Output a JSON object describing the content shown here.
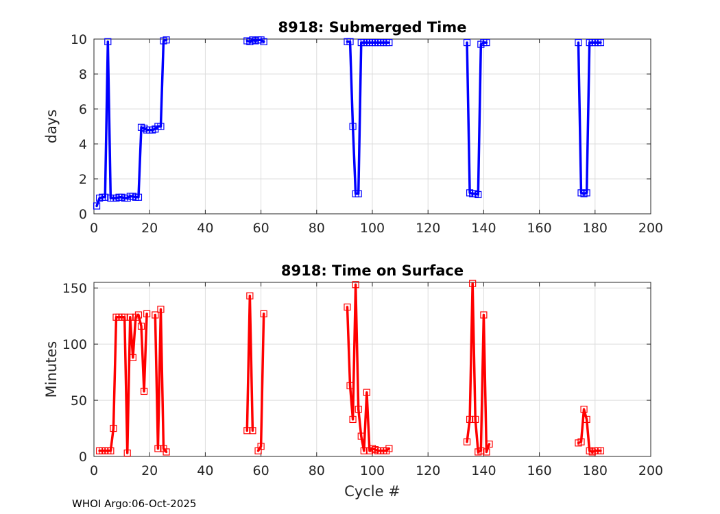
{
  "footer": "WHOI Argo:06-Oct-2025",
  "colors": {
    "top_series": "#0000ff",
    "bottom_series": "#ff0000"
  },
  "chart_data": [
    {
      "type": "line",
      "title": "8918: Submerged Time",
      "xlabel": "",
      "ylabel": "days",
      "xlim": [
        0,
        200
      ],
      "ylim": [
        0,
        10
      ],
      "xticks": [
        0,
        20,
        40,
        60,
        80,
        100,
        120,
        140,
        160,
        180,
        200
      ],
      "yticks": [
        0,
        2,
        4,
        6,
        8,
        10
      ],
      "grid": true,
      "marker": "square",
      "series": [
        {
          "name": "Submerged Time",
          "segments": [
            {
              "x": [
                1,
                2,
                3,
                4,
                5,
                6,
                7,
                8,
                9,
                10,
                11,
                12,
                13,
                14,
                15,
                16,
                17,
                18,
                19,
                20,
                21,
                22,
                23,
                24,
                25,
                26
              ],
              "y": [
                0.45,
                0.9,
                0.95,
                0.95,
                9.85,
                0.9,
                0.9,
                0.9,
                0.95,
                0.95,
                0.9,
                0.9,
                1.0,
                1.0,
                0.95,
                0.95,
                4.95,
                4.9,
                4.8,
                4.8,
                4.8,
                4.85,
                5.0,
                5.0,
                9.9,
                9.95
              ]
            },
            {
              "x": [
                55,
                56,
                57,
                58,
                59,
                60,
                61
              ],
              "y": [
                9.9,
                9.85,
                9.95,
                9.9,
                9.95,
                9.95,
                9.85
              ]
            },
            {
              "x": [
                91,
                92,
                93,
                94,
                95,
                96,
                97,
                98,
                99,
                100,
                101,
                102,
                103,
                104,
                105,
                106
              ],
              "y": [
                9.85,
                9.85,
                5.0,
                1.15,
                1.15,
                9.8,
                9.8,
                9.8,
                9.8,
                9.8,
                9.8,
                9.8,
                9.8,
                9.8,
                9.8,
                9.8
              ]
            },
            {
              "x": [
                134,
                135,
                136,
                137,
                138,
                139,
                140,
                141
              ],
              "y": [
                9.8,
                1.2,
                1.15,
                1.15,
                1.1,
                9.7,
                9.8,
                9.8
              ]
            },
            {
              "x": [
                174,
                175,
                176,
                177,
                178,
                179,
                180,
                181,
                182
              ],
              "y": [
                9.8,
                1.2,
                1.15,
                1.2,
                9.8,
                9.8,
                9.8,
                9.8,
                9.8
              ]
            }
          ]
        }
      ]
    },
    {
      "type": "line",
      "title": "8918: Time on Surface",
      "xlabel": "Cycle #",
      "ylabel": "Minutes",
      "xlim": [
        0,
        200
      ],
      "ylim": [
        0,
        155
      ],
      "xticks": [
        0,
        20,
        40,
        60,
        80,
        100,
        120,
        140,
        160,
        180,
        200
      ],
      "yticks": [
        0,
        50,
        100,
        150
      ],
      "grid": true,
      "marker": "square",
      "series": [
        {
          "name": "Time on Surface",
          "segments": [
            {
              "x": [
                2,
                3,
                4,
                5,
                6,
                7,
                8,
                9,
                10,
                11,
                12,
                13,
                14,
                15,
                16,
                17,
                18,
                19,
                20,
                21,
                22,
                23,
                24,
                25,
                26
              ],
              "y": [
                5,
                5,
                5,
                5,
                5,
                25,
                124,
                124,
                124,
                124,
                3,
                124,
                88,
                124,
                126,
                116,
                58,
                127,
                null,
                null,
                126,
                7,
                131,
                7,
                4
              ]
            },
            {
              "x": [
                55,
                56,
                57,
                58,
                59,
                60,
                61
              ],
              "y": [
                23,
                143,
                23,
                null,
                5,
                9,
                127
              ]
            },
            {
              "x": [
                91,
                92,
                93,
                94,
                95,
                96,
                97,
                98,
                99,
                100,
                101,
                102,
                103,
                104,
                105,
                106
              ],
              "y": [
                133,
                63,
                33,
                153,
                42,
                18,
                5,
                57,
                5,
                7,
                6,
                5,
                5,
                5,
                5,
                7
              ]
            },
            {
              "x": [
                134,
                135,
                136,
                137,
                138,
                139,
                140,
                141,
                142
              ],
              "y": [
                13,
                33,
                154,
                33,
                4,
                5,
                126,
                4,
                11
              ]
            },
            {
              "x": [
                174,
                175,
                176,
                177,
                178,
                179,
                180,
                181,
                182
              ],
              "y": [
                12,
                13,
                42,
                33,
                5,
                4,
                5,
                5,
                5
              ]
            }
          ]
        }
      ]
    }
  ]
}
